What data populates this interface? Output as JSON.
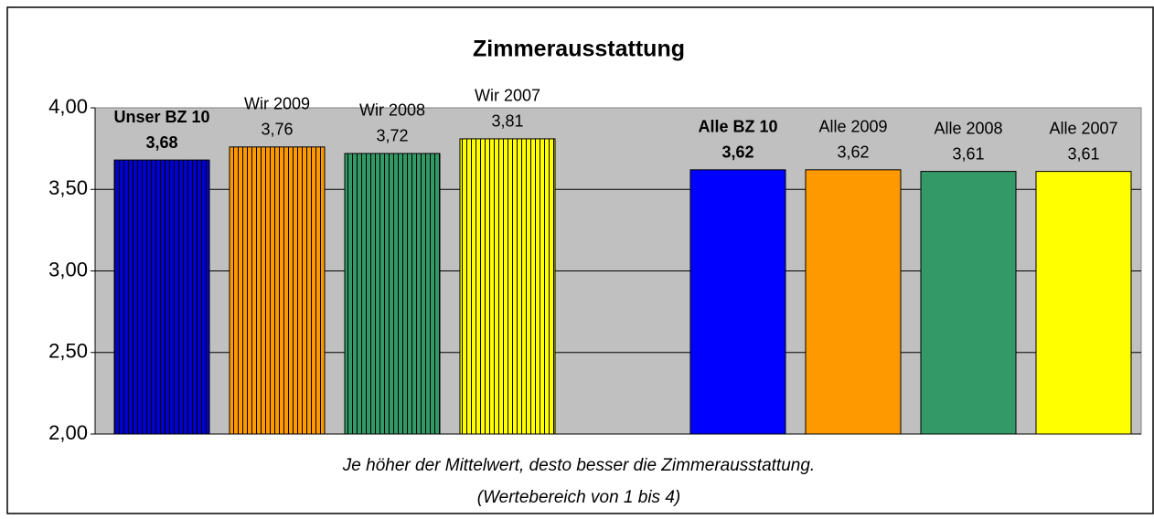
{
  "chart_data": {
    "type": "bar",
    "title": "Zimmerausstattung",
    "categories": [
      "Unser BZ 10",
      "Wir 2009",
      "Wir 2008",
      "Wir 2007",
      null,
      "Alle BZ 10",
      "Alle 2009",
      "Alle 2008",
      "Alle 2007"
    ],
    "values": [
      3.68,
      3.76,
      3.72,
      3.81,
      null,
      3.62,
      3.62,
      3.61,
      3.61
    ],
    "value_labels": [
      "3,68",
      "3,76",
      "3,72",
      "3,81",
      null,
      "3,62",
      "3,62",
      "3,61",
      "3,61"
    ],
    "colors": [
      "#0000cc",
      "#ff9900",
      "#339966",
      "#ffff00",
      null,
      "#0000ff",
      "#ff9900",
      "#339966",
      "#ffff00"
    ],
    "hatched": [
      true,
      true,
      true,
      true,
      null,
      false,
      false,
      false,
      false
    ],
    "label_bold": [
      true,
      false,
      false,
      false,
      null,
      true,
      false,
      false,
      false
    ],
    "ylim": [
      2,
      4
    ],
    "yticks": [
      {
        "value": 2,
        "label": "2,00"
      },
      {
        "value": 2.5,
        "label": "2,50"
      },
      {
        "value": 3,
        "label": "3,00"
      },
      {
        "value": 3.5,
        "label": "3,50"
      },
      {
        "value": 4,
        "label": "4,00"
      }
    ],
    "grid": true,
    "annotations": [
      "Je höher der Mittelwert, desto besser die Zimmerausstattung.",
      "(Wertebereich von 1 bis 4)"
    ]
  }
}
